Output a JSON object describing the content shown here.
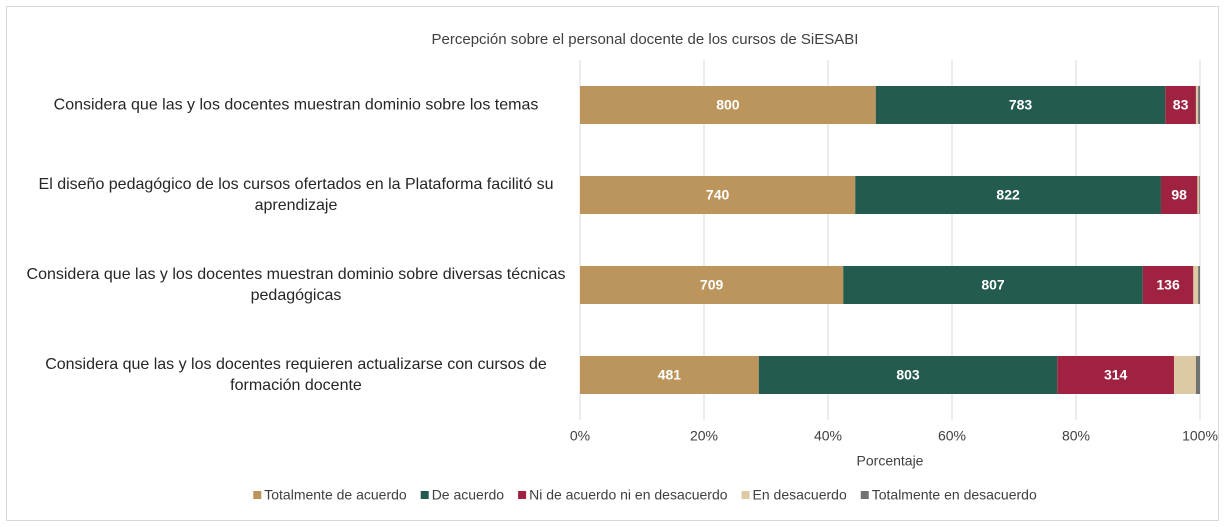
{
  "chart_data": {
    "type": "stacked-bar-100",
    "title": "Percepción sobre el personal docente de los cursos de SiESABI",
    "xlabel": "Porcentaje",
    "categories": [
      "Considera que las y los docentes muestran dominio sobre los temas",
      "El diseño pedagógico de los cursos ofertados en la Plataforma facilitó su aprendizaje",
      "Considera que las y los docentes muestran dominio sobre diversas técnicas pedagógicas",
      "Considera que las y los docentes requieren actualizarse con cursos de formación docente"
    ],
    "series": [
      {
        "name": "Totalmente de acuerdo",
        "color": "#bc955c",
        "values": [
          800,
          740,
          709,
          481
        ]
      },
      {
        "name": "De acuerdo",
        "color": "#235b4e",
        "values": [
          783,
          822,
          807,
          803
        ]
      },
      {
        "name": "Ni de acuerdo ni en desacuerdo",
        "color": "#9f2241",
        "values": [
          83,
          98,
          136,
          314
        ]
      },
      {
        "name": "En desacuerdo",
        "color": "#ddc9a3",
        "values": [
          6,
          5,
          13,
          59
        ]
      },
      {
        "name": "Totalmente en desacuerdo",
        "color": "#6f7271",
        "values": [
          5,
          2,
          5,
          11
        ]
      }
    ],
    "xlim": [
      0,
      100
    ],
    "xticks": [
      {
        "value": 0,
        "label": "0%"
      },
      {
        "value": 20,
        "label": "20%"
      },
      {
        "value": 40,
        "label": "40%"
      },
      {
        "value": 60,
        "label": "60%"
      },
      {
        "value": 80,
        "label": "80%"
      },
      {
        "value": 100,
        "label": "100%"
      }
    ],
    "grid": true,
    "legend": "bottom"
  }
}
